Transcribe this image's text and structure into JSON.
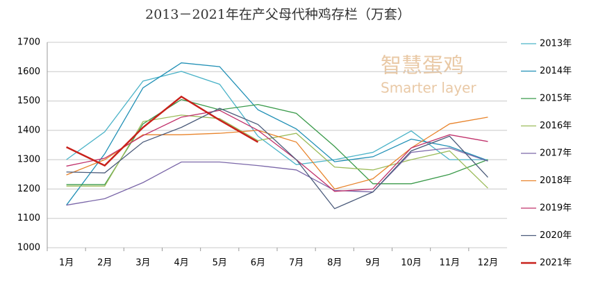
{
  "chart_data": {
    "type": "line",
    "title": "2013－2021年在产父母代种鸡存栏（万套）",
    "watermark": [
      "智慧蛋鸡",
      "Smarter layer"
    ],
    "categories": [
      "1月",
      "2月",
      "3月",
      "4月",
      "5月",
      "6月",
      "7月",
      "8月",
      "9月",
      "10月",
      "11月",
      "12月"
    ],
    "ylim": [
      1000,
      1700
    ],
    "yticks": [
      1000,
      1100,
      1200,
      1300,
      1400,
      1500,
      1600,
      1700
    ],
    "grid": true,
    "legend": "right",
    "series": [
      {
        "name": "2013年",
        "color": "#4bb3c8",
        "values": [
          1300,
          1395,
          1568,
          1601,
          1557,
          1380,
          1283,
          1300,
          1325,
          1398,
          1300,
          1300
        ]
      },
      {
        "name": "2014年",
        "color": "#1f8fb5",
        "values": [
          1145,
          1320,
          1545,
          1630,
          1617,
          1470,
          1405,
          1293,
          1310,
          1370,
          1345,
          1297
        ]
      },
      {
        "name": "2015年",
        "color": "#3a9a4a",
        "values": [
          1215,
          1215,
          1422,
          1505,
          1470,
          1488,
          1458,
          1345,
          1218,
          1218,
          1250,
          1300
        ]
      },
      {
        "name": "2016年",
        "color": "#9bbb59",
        "values": [
          1210,
          1210,
          1430,
          1452,
          1440,
          1365,
          1390,
          1275,
          1265,
          1300,
          1330,
          1203
        ]
      },
      {
        "name": "2017年",
        "color": "#7a66a8",
        "values": [
          1145,
          1167,
          1222,
          1292,
          1292,
          1280,
          1265,
          1195,
          1190,
          1325,
          1340,
          1295
        ]
      },
      {
        "name": "2018年",
        "color": "#e8832a",
        "values": [
          1248,
          1300,
          1385,
          1385,
          1390,
          1400,
          1360,
          1200,
          1235,
          1340,
          1422,
          1445
        ]
      },
      {
        "name": "2019年",
        "color": "#c0306a",
        "values": [
          1278,
          1305,
          1382,
          1445,
          1468,
          1400,
          1300,
          1192,
          1200,
          1340,
          1385,
          1362
        ]
      },
      {
        "name": "2020年",
        "color": "#4a5a7a",
        "values": [
          1258,
          1255,
          1360,
          1410,
          1475,
          1420,
          1300,
          1133,
          1190,
          1330,
          1380,
          1240
        ]
      },
      {
        "name": "2021年",
        "color": "#c8201a",
        "values": [
          1343,
          1280,
          1410,
          1515,
          1435,
          1360,
          null,
          null,
          null,
          null,
          null,
          null
        ]
      }
    ]
  }
}
